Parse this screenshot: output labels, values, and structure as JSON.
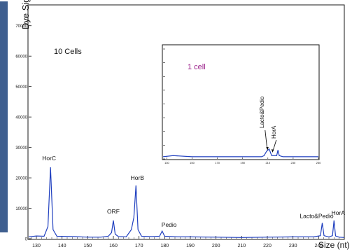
{
  "chart_data": [
    {
      "type": "line",
      "ylabel": "Dye Signal",
      "xlabel": "Size (nt)",
      "annotation": "10 Cells",
      "xlim": [
        127,
        250
      ],
      "ylim": [
        0,
        75000
      ],
      "x_ticks": [
        130,
        140,
        150,
        160,
        170,
        180,
        190,
        200,
        210,
        220,
        230,
        240
      ],
      "y_ticks": [
        0,
        10000,
        20000,
        30000,
        40000,
        50000,
        60000,
        70000
      ],
      "series": [
        {
          "color": "#1f3fbf",
          "x": [
            127,
            130,
            133,
            134.5,
            135.5,
            136.5,
            138,
            145,
            150,
            155,
            158,
            159.3,
            160,
            160.7,
            162,
            165,
            167,
            168,
            168.8,
            169.6,
            171,
            175,
            178,
            179,
            180,
            185,
            190,
            200,
            210,
            220,
            230,
            238,
            240.7,
            241.4,
            242.1,
            244,
            245.4,
            246,
            246.6,
            248,
            250
          ],
          "y": [
            600,
            900,
            800,
            4000,
            23500,
            3000,
            800,
            700,
            500,
            500,
            800,
            2000,
            6000,
            1500,
            700,
            600,
            3000,
            7000,
            17500,
            3000,
            800,
            700,
            800,
            2500,
            800,
            600,
            600,
            500,
            400,
            500,
            600,
            600,
            1000,
            5200,
            1000,
            600,
            1000,
            6000,
            900,
            500,
            400
          ]
        }
      ],
      "peak_labels": [
        {
          "text": "HorC",
          "x": 135.5,
          "y": 23500
        },
        {
          "text": "ORF",
          "x": 160,
          "y": 6000
        },
        {
          "text": "HorB",
          "x": 168.8,
          "y": 17500
        },
        {
          "text": "Pedio",
          "x": 179,
          "y": 2500
        },
        {
          "text": "Lacto&Pedio",
          "x": 241.4,
          "y": 5200
        },
        {
          "text": "HorA",
          "x": 246,
          "y": 6000
        }
      ]
    },
    {
      "type": "line",
      "annotation": "1 cell",
      "xlabel": "",
      "ylabel": "",
      "xlim": [
        127,
        250
      ],
      "x_ticks": [
        130,
        150,
        170,
        190,
        210,
        230,
        250
      ],
      "series": [
        {
          "color": "#1f3fbf",
          "x": [
            127,
            135,
            150,
            170,
            190,
            205,
            207,
            209,
            211,
            213,
            217,
            218,
            219,
            222,
            230,
            240,
            250
          ],
          "y": [
            0.02,
            0.03,
            0.02,
            0.02,
            0.02,
            0.02,
            0.03,
            0.07,
            0.09,
            0.03,
            0.03,
            0.08,
            0.03,
            0.02,
            0.02,
            0.02,
            0.02
          ]
        }
      ],
      "peak_labels": [
        {
          "text": "Lacto&Pedio",
          "x": 210
        },
        {
          "text": "HorA",
          "x": 215
        }
      ]
    }
  ]
}
